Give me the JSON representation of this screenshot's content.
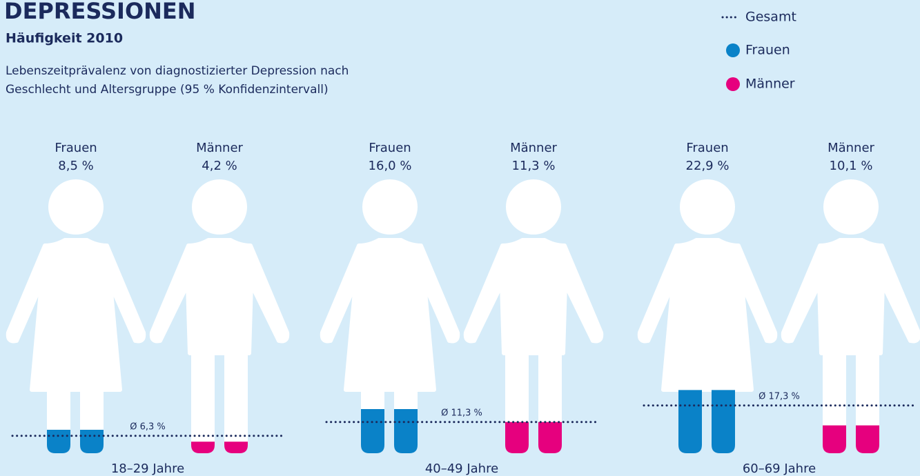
{
  "chart_data": {
    "type": "pictogram",
    "title": "DEPRESSIONEN",
    "subtitle": "Häufigkeit 2010",
    "description": "Lebenszeitprävalenz von diagnostizierter Depression nach Geschlecht und Altersgruppe (95 % Konfidenzintervall)",
    "categories": [
      "18–29 Jahre",
      "40–49 Jahre",
      "60–69 Jahre"
    ],
    "series": [
      {
        "name": "Frauen",
        "color": "#0a82c8",
        "values": [
          8.5,
          16.0,
          22.9
        ],
        "value_labels": [
          "8,5 %",
          "16,0 %",
          "22,9 %"
        ]
      },
      {
        "name": "Männer",
        "color": "#e6007e",
        "values": [
          4.2,
          11.3,
          10.1
        ],
        "value_labels": [
          "4,2 %",
          "11,3 %",
          "10,1 %"
        ]
      }
    ],
    "average": {
      "name": "Gesamt",
      "color": "#1b2a5c",
      "values": [
        6.3,
        11.3,
        17.3
      ],
      "value_labels": [
        "Ø 6,3 %",
        "Ø 11,3 %",
        "Ø 17,3 %"
      ]
    },
    "ylim": [
      0,
      100
    ]
  }
}
